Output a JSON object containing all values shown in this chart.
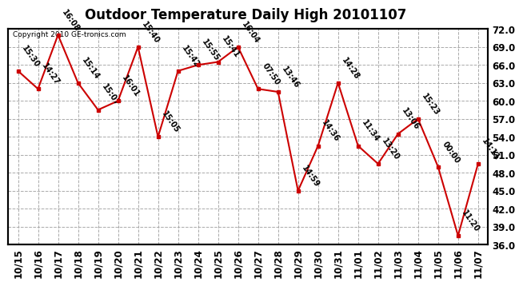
{
  "title": "Outdoor Temperature Daily High 20101107",
  "copyright": "Copyright 2010 GE-tronics.com",
  "dates": [
    "10/15",
    "10/16",
    "10/17",
    "10/18",
    "10/19",
    "10/20",
    "10/21",
    "10/22",
    "10/23",
    "10/24",
    "10/25",
    "10/26",
    "10/27",
    "10/28",
    "10/29",
    "10/30",
    "10/31",
    "11/01",
    "11/02",
    "11/03",
    "11/04",
    "11/05",
    "11/06",
    "11/07"
  ],
  "temps": [
    65.0,
    62.0,
    71.0,
    63.0,
    58.5,
    60.0,
    69.0,
    54.0,
    65.0,
    66.0,
    66.5,
    69.0,
    62.0,
    61.5,
    45.0,
    52.5,
    63.0,
    52.5,
    49.5,
    54.5,
    57.0,
    49.0,
    37.5,
    49.5
  ],
  "labels": [
    "15:30",
    "14:27",
    "16:08",
    "15:14",
    "15:07",
    "16:01",
    "15:40",
    "15:05",
    "15:42",
    "15:55",
    "15:41",
    "16:04",
    "07:50",
    "13:46",
    "14:59",
    "14:36",
    "14:28",
    "11:34",
    "13:20",
    "13:06",
    "15:23",
    "00:00",
    "11:20",
    "14:11"
  ],
  "ylim_min": 36.0,
  "ylim_max": 72.0,
  "yticks": [
    36.0,
    39.0,
    42.0,
    45.0,
    48.0,
    51.0,
    54.0,
    57.0,
    60.0,
    63.0,
    66.0,
    69.0,
    72.0
  ],
  "line_color": "#cc0000",
  "marker_color": "#cc0000",
  "bg_color": "#ffffff",
  "grid_color": "#aaaaaa",
  "title_fontsize": 12,
  "label_fontsize": 7,
  "tick_fontsize": 8.5
}
